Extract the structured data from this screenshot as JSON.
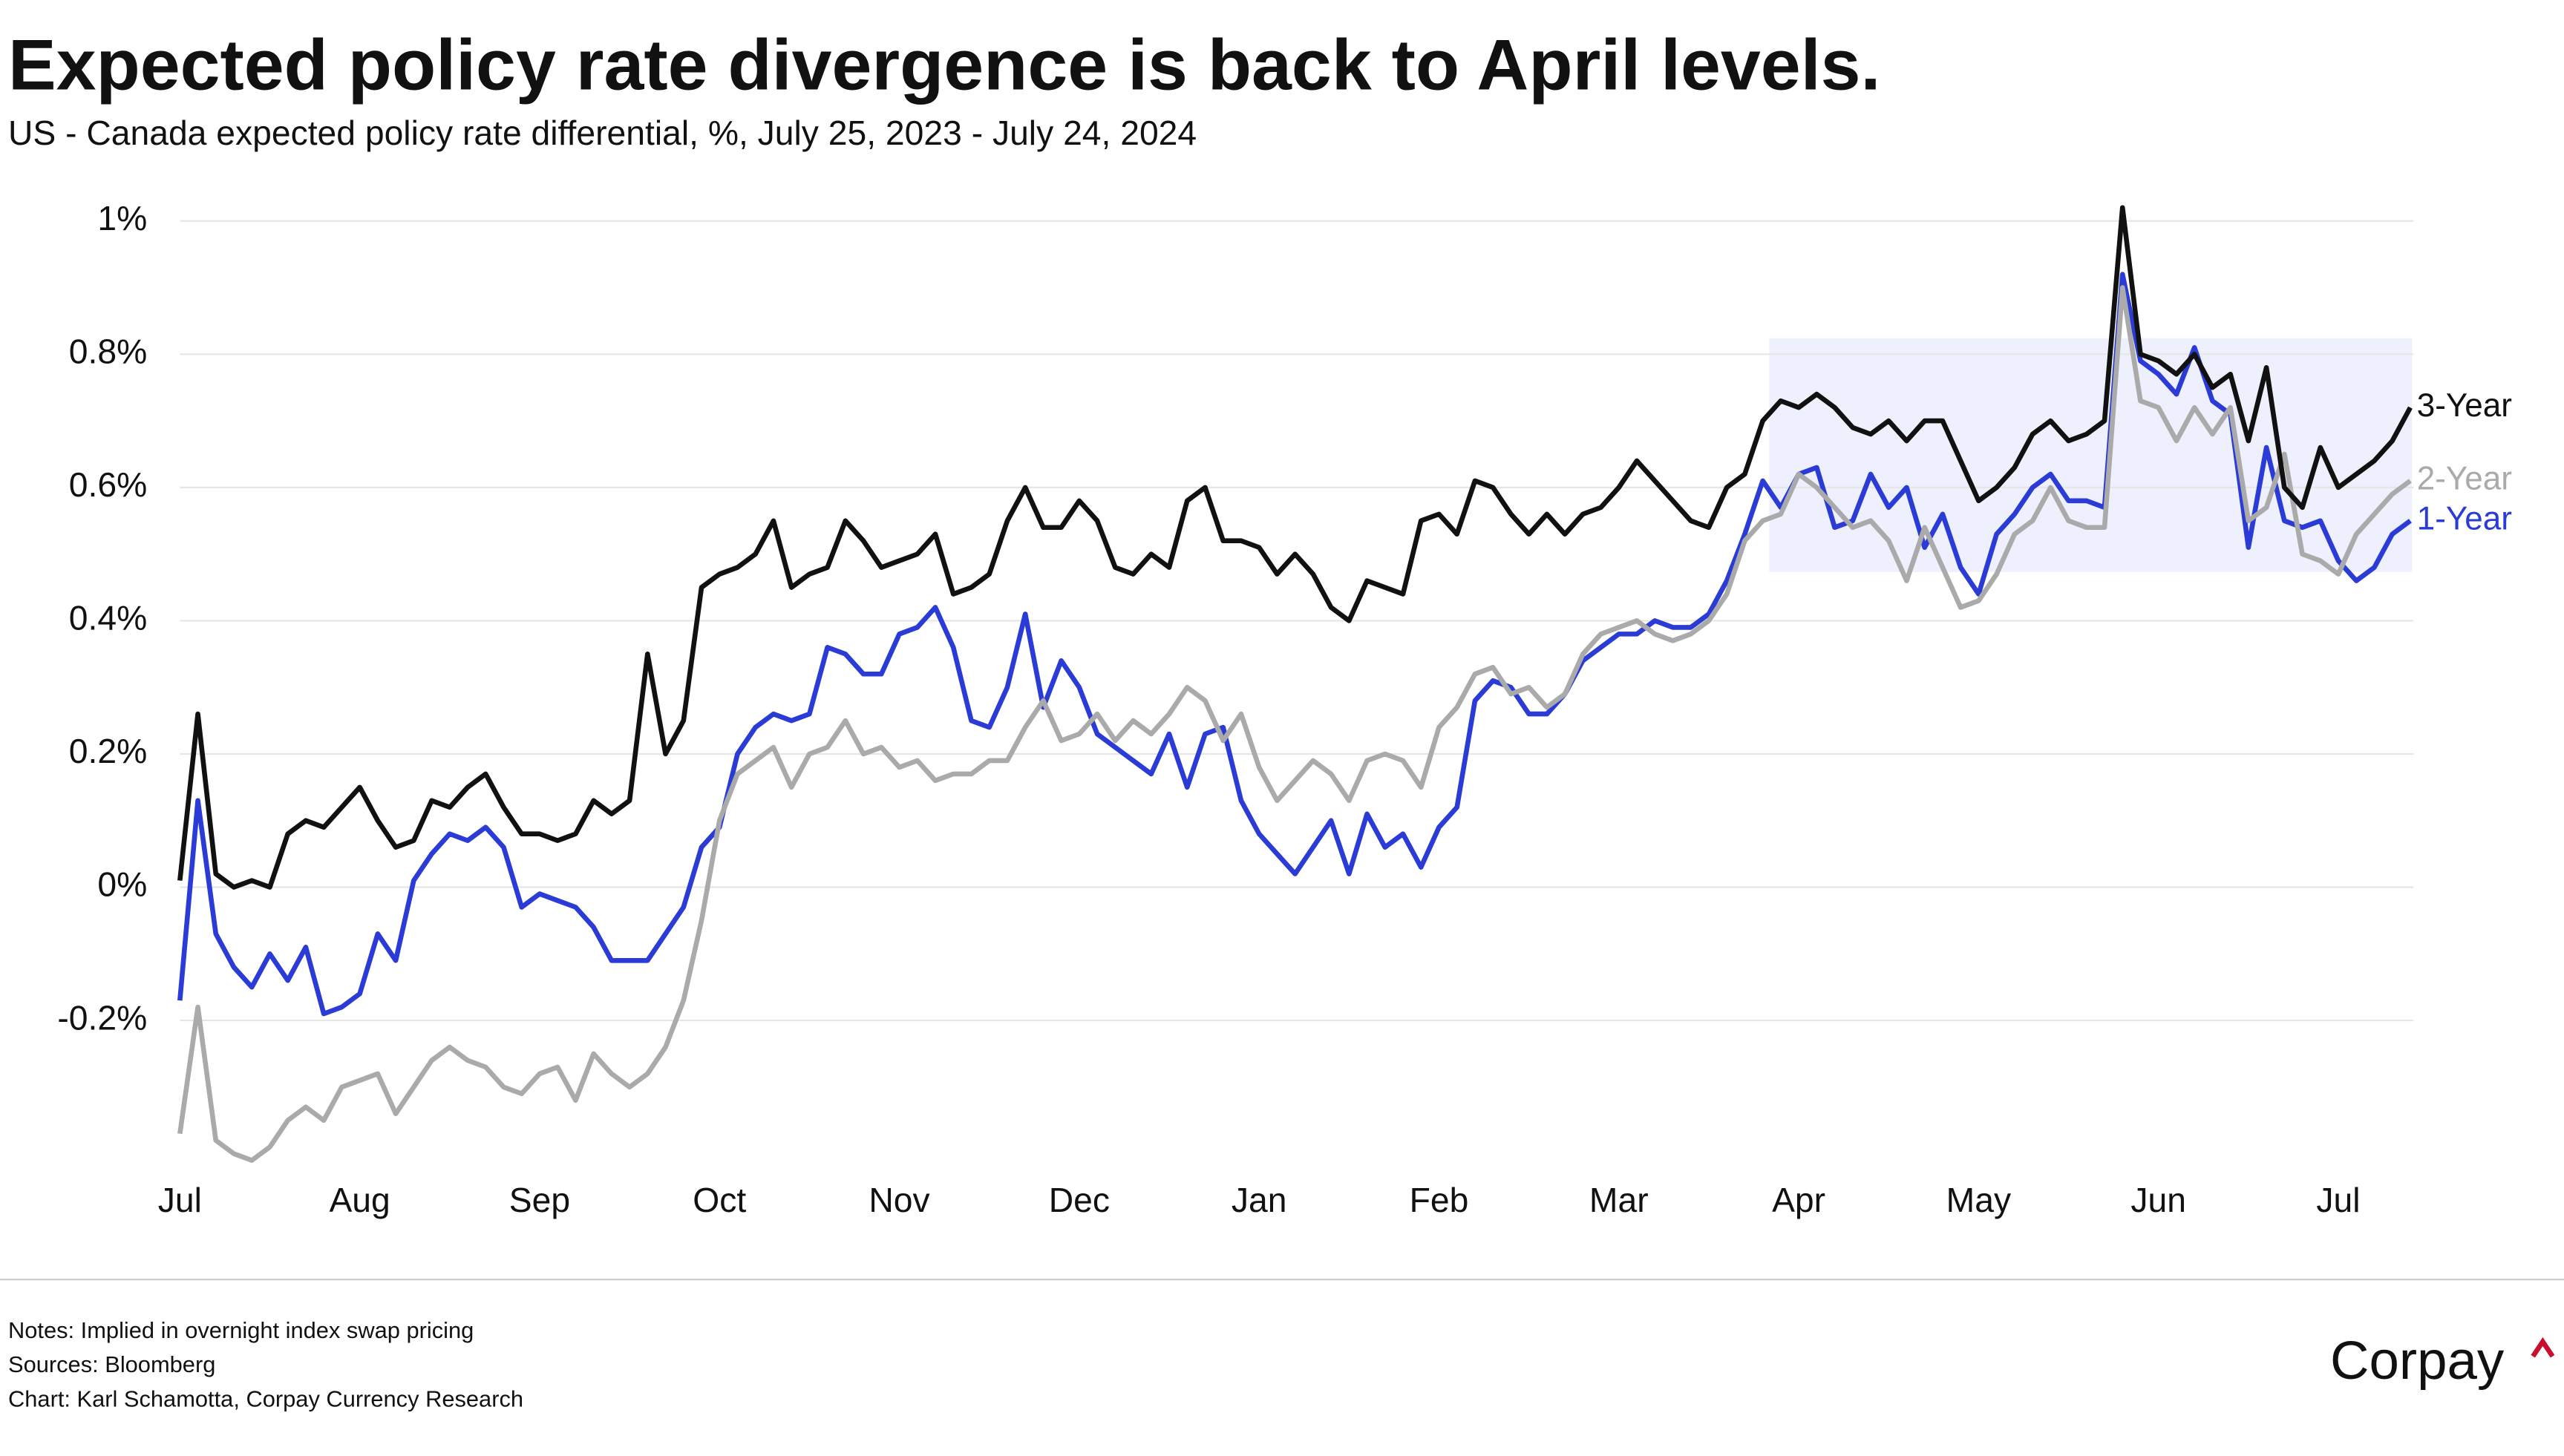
{
  "chart_data": {
    "type": "line",
    "title": "Expected policy rate divergence is back to April levels.",
    "subtitle": "US - Canada expected policy rate differential, %, July 25, 2023 - July 24, 2024",
    "categories": [
      "Jul",
      null,
      null,
      null,
      null,
      null,
      null,
      null,
      null,
      null,
      "Aug",
      null,
      null,
      null,
      null,
      null,
      null,
      null,
      null,
      null,
      "Sep",
      null,
      null,
      null,
      null,
      null,
      null,
      null,
      null,
      null,
      "Oct",
      null,
      null,
      null,
      null,
      null,
      null,
      null,
      null,
      null,
      "Nov",
      null,
      null,
      null,
      null,
      null,
      null,
      null,
      null,
      null,
      "Dec",
      null,
      null,
      null,
      null,
      null,
      null,
      null,
      null,
      null,
      "Jan",
      null,
      null,
      null,
      null,
      null,
      null,
      null,
      null,
      null,
      "Feb",
      null,
      null,
      null,
      null,
      null,
      null,
      null,
      null,
      null,
      "Mar",
      null,
      null,
      null,
      null,
      null,
      null,
      null,
      null,
      null,
      "Apr",
      null,
      null,
      null,
      null,
      null,
      null,
      null,
      null,
      null,
      "May",
      null,
      null,
      null,
      null,
      null,
      null,
      null,
      null,
      null,
      "Jun",
      null,
      null,
      null,
      null,
      null,
      null,
      null,
      null,
      null,
      "Jul",
      null,
      null,
      null,
      null
    ],
    "series": [
      {
        "name": "3-Year",
        "color": "#111111",
        "values": [
          0.01,
          0.26,
          0.02,
          0.0,
          0.01,
          0.0,
          0.08,
          0.1,
          0.09,
          0.12,
          0.15,
          0.1,
          0.06,
          0.07,
          0.13,
          0.12,
          0.15,
          0.17,
          0.12,
          0.08,
          0.08,
          0.07,
          0.08,
          0.13,
          0.11,
          0.13,
          0.35,
          0.2,
          0.25,
          0.45,
          0.47,
          0.48,
          0.5,
          0.55,
          0.45,
          0.47,
          0.48,
          0.55,
          0.52,
          0.48,
          0.49,
          0.5,
          0.53,
          0.44,
          0.45,
          0.47,
          0.55,
          0.6,
          0.54,
          0.54,
          0.58,
          0.55,
          0.48,
          0.47,
          0.5,
          0.48,
          0.58,
          0.6,
          0.52,
          0.52,
          0.51,
          0.47,
          0.5,
          0.47,
          0.42,
          0.4,
          0.46,
          0.45,
          0.44,
          0.55,
          0.56,
          0.53,
          0.61,
          0.6,
          0.56,
          0.53,
          0.56,
          0.53,
          0.56,
          0.57,
          0.6,
          0.64,
          0.61,
          0.58,
          0.55,
          0.54,
          0.6,
          0.62,
          0.7,
          0.73,
          0.72,
          0.74,
          0.72,
          0.69,
          0.68,
          0.7,
          0.67,
          0.7,
          0.7,
          0.64,
          0.58,
          0.6,
          0.63,
          0.68,
          0.7,
          0.67,
          0.68,
          0.7,
          1.02,
          0.8,
          0.79,
          0.77,
          0.8,
          0.75,
          0.77,
          0.67,
          0.78,
          0.6,
          0.57,
          0.66,
          0.6,
          0.62,
          0.64,
          0.67,
          0.72
        ]
      },
      {
        "name": "2-Year",
        "color": "#aaaaaa",
        "values": [
          -0.37,
          -0.18,
          -0.38,
          -0.4,
          -0.41,
          -0.39,
          -0.35,
          -0.33,
          -0.35,
          -0.3,
          -0.29,
          -0.28,
          -0.34,
          -0.3,
          -0.26,
          -0.24,
          -0.26,
          -0.27,
          -0.3,
          -0.31,
          -0.28,
          -0.27,
          -0.32,
          -0.25,
          -0.28,
          -0.3,
          -0.28,
          -0.24,
          -0.17,
          -0.05,
          0.1,
          0.17,
          0.19,
          0.21,
          0.15,
          0.2,
          0.21,
          0.25,
          0.2,
          0.21,
          0.18,
          0.19,
          0.16,
          0.17,
          0.17,
          0.19,
          0.19,
          0.24,
          0.28,
          0.22,
          0.23,
          0.26,
          0.22,
          0.25,
          0.23,
          0.26,
          0.3,
          0.28,
          0.22,
          0.26,
          0.18,
          0.13,
          0.16,
          0.19,
          0.17,
          0.13,
          0.19,
          0.2,
          0.19,
          0.15,
          0.24,
          0.27,
          0.32,
          0.33,
          0.29,
          0.3,
          0.27,
          0.29,
          0.35,
          0.38,
          0.39,
          0.4,
          0.38,
          0.37,
          0.38,
          0.4,
          0.44,
          0.52,
          0.55,
          0.56,
          0.62,
          0.6,
          0.57,
          0.54,
          0.55,
          0.52,
          0.46,
          0.54,
          0.48,
          0.42,
          0.43,
          0.47,
          0.53,
          0.55,
          0.6,
          0.55,
          0.54,
          0.54,
          0.9,
          0.73,
          0.72,
          0.67,
          0.72,
          0.68,
          0.72,
          0.55,
          0.57,
          0.65,
          0.5,
          0.49,
          0.47,
          0.53,
          0.56,
          0.59,
          0.61
        ]
      },
      {
        "name": "1-Year",
        "color": "#2b3bd6",
        "values": [
          -0.17,
          0.13,
          -0.07,
          -0.12,
          -0.15,
          -0.1,
          -0.14,
          -0.09,
          -0.19,
          -0.18,
          -0.16,
          -0.07,
          -0.11,
          0.01,
          0.05,
          0.08,
          0.07,
          0.09,
          0.06,
          -0.03,
          -0.01,
          -0.02,
          -0.03,
          -0.06,
          -0.11,
          -0.11,
          -0.11,
          -0.07,
          -0.03,
          0.06,
          0.09,
          0.2,
          0.24,
          0.26,
          0.25,
          0.26,
          0.36,
          0.35,
          0.32,
          0.32,
          0.38,
          0.39,
          0.42,
          0.36,
          0.25,
          0.24,
          0.3,
          0.41,
          0.27,
          0.34,
          0.3,
          0.23,
          0.21,
          0.19,
          0.17,
          0.23,
          0.15,
          0.23,
          0.24,
          0.13,
          0.08,
          0.05,
          0.02,
          0.06,
          0.1,
          0.02,
          0.11,
          0.06,
          0.08,
          0.03,
          0.09,
          0.12,
          0.28,
          0.31,
          0.3,
          0.26,
          0.26,
          0.29,
          0.34,
          0.36,
          0.38,
          0.38,
          0.4,
          0.39,
          0.39,
          0.41,
          0.46,
          0.53,
          0.61,
          0.57,
          0.62,
          0.63,
          0.54,
          0.55,
          0.62,
          0.57,
          0.6,
          0.51,
          0.56,
          0.48,
          0.44,
          0.53,
          0.56,
          0.6,
          0.62,
          0.58,
          0.58,
          0.57,
          0.92,
          0.79,
          0.77,
          0.74,
          0.81,
          0.73,
          0.71,
          0.51,
          0.66,
          0.55,
          0.54,
          0.55,
          0.49,
          0.46,
          0.48,
          0.53,
          0.55
        ]
      }
    ],
    "ylim": [
      -0.4,
      1.03
    ],
    "yticks": [
      {
        "value": -0.2,
        "label": "-0.2%"
      },
      {
        "value": 0,
        "label": "0%"
      },
      {
        "value": 0.2,
        "label": "0.2%"
      },
      {
        "value": 0.4,
        "label": "0.4%"
      },
      {
        "value": 0.6,
        "label": "0.6%"
      },
      {
        "value": 0.8,
        "label": "0.8%"
      },
      {
        "value": 1,
        "label": "1%"
      }
    ],
    "grid": true,
    "notes": "Notes: Implied in overnight index swap pricing",
    "source": "Sources: Bloomberg",
    "credit": "Chart: Karl Schamotta, Corpay Currency Research",
    "logo": "Corpay"
  }
}
